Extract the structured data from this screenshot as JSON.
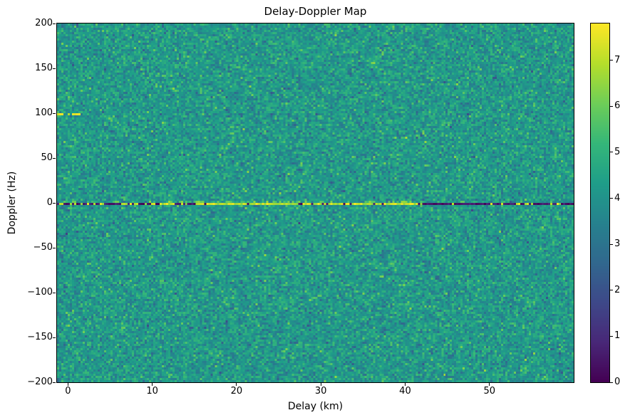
{
  "figure": {
    "title": "Delay-Doppler Map",
    "xlabel": "Delay (km)",
    "ylabel": "Doppler (Hz)"
  },
  "chart_data": {
    "type": "heatmap",
    "title": "Delay-Doppler Map",
    "xlabel": "Delay (km)",
    "ylabel": "Doppler (Hz)",
    "xlim": [
      -1.3,
      60
    ],
    "ylim": [
      -200,
      200
    ],
    "clim": [
      0,
      7.8
    ],
    "colormap": "viridis",
    "x_ticks": [
      0,
      10,
      20,
      30,
      40,
      50
    ],
    "y_ticks": [
      -200,
      -150,
      -100,
      -50,
      0,
      50,
      100,
      150,
      200
    ],
    "colorbar_ticks": [
      0,
      1,
      2,
      3,
      4,
      5,
      6,
      7
    ],
    "background_noise": {
      "mean": 4.2,
      "std": 0.65,
      "clip": [
        1.5,
        7.2
      ],
      "seed": 42,
      "description": "speckled teal/green noise field covering the whole map, values mostly between 3 and 5.5"
    },
    "features": {
      "zero_line": {
        "doppler": 0,
        "dark_value_range": [
          0.1,
          1.0
        ],
        "bright_value_range": [
          6.2,
          7.8
        ],
        "bright_prob_zones": [
          {
            "delay": [
              -1.3,
              4
            ],
            "p": 0.35
          },
          {
            "delay": [
              4,
              15
            ],
            "p": 0.45
          },
          {
            "delay": [
              15,
              42
            ],
            "p": 0.85
          },
          {
            "delay": [
              42,
              60
            ],
            "p": 0.12
          }
        ],
        "description": "thin horizontal line at 0 Hz Doppler: near-black baseline with bright yellow specular segments concentrated between ~15 and ~42 km delay"
      },
      "bright_streak": {
        "doppler": 100,
        "delay_range": [
          -1.3,
          1.5
        ],
        "value_range": [
          6.5,
          7.8
        ],
        "description": "short bright yellow streak at ~100 Hz Doppler near 0 km delay at the left edge"
      }
    }
  }
}
